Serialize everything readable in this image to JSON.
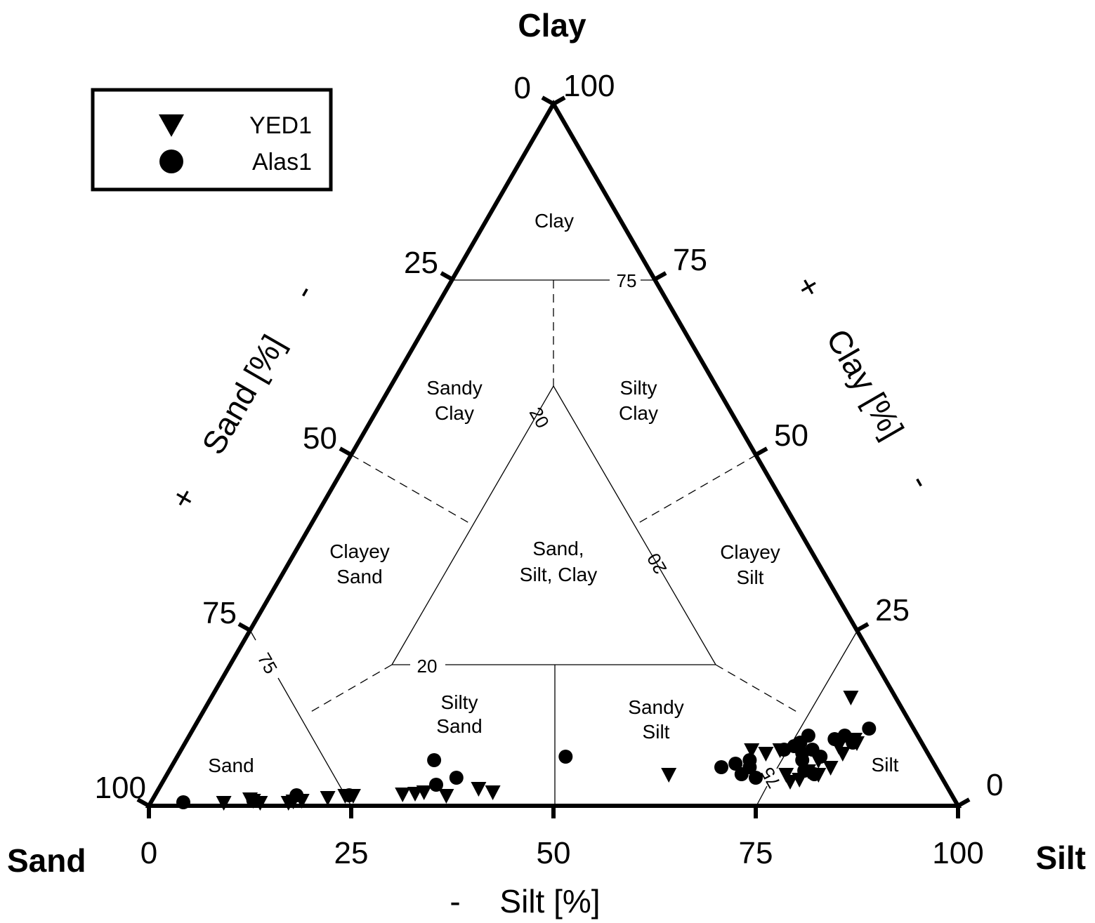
{
  "chart_data": {
    "type": "scatter",
    "subtype": "ternary",
    "corners": {
      "top": "Clay",
      "left": "Sand",
      "right": "Silt"
    },
    "axis_titles": {
      "left": {
        "plus": "+",
        "label": "Sand [%]",
        "minus": "-"
      },
      "right": {
        "plus": "+",
        "label": "Clay [%]",
        "minus": "-"
      },
      "bottom": {
        "minus": "-",
        "label": "Silt [%]"
      }
    },
    "ticks": {
      "bottom": [
        "0",
        "25",
        "50",
        "75",
        "100"
      ],
      "left": [
        "0",
        "25",
        "50",
        "75",
        "100"
      ],
      "right": [
        "100",
        "75",
        "50",
        "25",
        "0"
      ]
    },
    "boundary_labels": {
      "clay_75": "75",
      "clay_20": "20",
      "left_20": "20",
      "right_20": "20",
      "sand_75": "75",
      "silt_75": "75"
    },
    "regions": [
      {
        "id": "clay",
        "lines": [
          "Clay"
        ]
      },
      {
        "id": "sandy-clay",
        "lines": [
          "Sandy",
          "Clay"
        ]
      },
      {
        "id": "silty-clay",
        "lines": [
          "Silty",
          "Clay"
        ]
      },
      {
        "id": "clayey-sand",
        "lines": [
          "Clayey",
          "Sand"
        ]
      },
      {
        "id": "sand-silt-clay",
        "lines": [
          "Sand,",
          "Silt, Clay"
        ]
      },
      {
        "id": "clayey-silt",
        "lines": [
          "Clayey",
          "Silt"
        ]
      },
      {
        "id": "silty-sand",
        "lines": [
          "Silty",
          "Sand"
        ]
      },
      {
        "id": "sandy-silt",
        "lines": [
          "Sandy",
          "Silt"
        ]
      },
      {
        "id": "sand",
        "lines": [
          "Sand"
        ]
      },
      {
        "id": "silt",
        "lines": [
          "Silt"
        ]
      }
    ],
    "legend": {
      "position": "top-left"
    },
    "series": [
      {
        "name": "YED1",
        "marker": "triangle-down",
        "points": [
          {
            "silt": 9.0,
            "clay": 0.5
          },
          {
            "silt": 12.0,
            "clay": 1.0
          },
          {
            "silt": 12.5,
            "clay": 0.8
          },
          {
            "silt": 13.5,
            "clay": 0.5
          },
          {
            "silt": 17.0,
            "clay": 0.5
          },
          {
            "silt": 17.5,
            "clay": 0.7
          },
          {
            "silt": 18.5,
            "clay": 0.8
          },
          {
            "silt": 21.5,
            "clay": 1.2
          },
          {
            "silt": 23.5,
            "clay": 1.5
          },
          {
            "silt": 24.5,
            "clay": 1.5
          },
          {
            "silt": 30.5,
            "clay": 1.7
          },
          {
            "silt": 32.0,
            "clay": 1.8
          },
          {
            "silt": 33.0,
            "clay": 2.0
          },
          {
            "silt": 36.0,
            "clay": 1.5
          },
          {
            "silt": 39.5,
            "clay": 2.5
          },
          {
            "silt": 41.5,
            "clay": 2.0
          },
          {
            "silt": 62.0,
            "clay": 4.5
          },
          {
            "silt": 70.5,
            "clay": 8.0
          },
          {
            "silt": 72.5,
            "clay": 7.5
          },
          {
            "silt": 74.0,
            "clay": 8.0
          },
          {
            "silt": 76.5,
            "clay": 4.5
          },
          {
            "silt": 77.5,
            "clay": 3.5
          },
          {
            "silt": 78.5,
            "clay": 3.8
          },
          {
            "silt": 79.0,
            "clay": 5.0
          },
          {
            "silt": 79.5,
            "clay": 6.5
          },
          {
            "silt": 80.5,
            "clay": 4.5
          },
          {
            "silt": 81.0,
            "clay": 8.5
          },
          {
            "silt": 82.0,
            "clay": 7.5
          },
          {
            "silt": 82.5,
            "clay": 9.5
          },
          {
            "silt": 83.0,
            "clay": 9.0
          },
          {
            "silt": 81.5,
            "clay": 5.5
          },
          {
            "silt": 79.0,
            "clay": 15.5
          }
        ]
      },
      {
        "name": "Alas1",
        "marker": "circle",
        "points": [
          {
            "silt": 4.0,
            "clay": 0.5
          },
          {
            "silt": 12.5,
            "clay": 0.8
          },
          {
            "silt": 17.5,
            "clay": 1.5
          },
          {
            "silt": 24.0,
            "clay": 1.5
          },
          {
            "silt": 32.0,
            "clay": 6.5
          },
          {
            "silt": 34.0,
            "clay": 3.0
          },
          {
            "silt": 36.0,
            "clay": 4.0
          },
          {
            "silt": 48.0,
            "clay": 7.0
          },
          {
            "silt": 68.0,
            "clay": 5.5
          },
          {
            "silt": 69.5,
            "clay": 6.0
          },
          {
            "silt": 71.0,
            "clay": 6.5
          },
          {
            "silt": 71.5,
            "clay": 5.5
          },
          {
            "silt": 71.0,
            "clay": 4.5
          },
          {
            "silt": 74.5,
            "clay": 8.0
          },
          {
            "silt": 75.5,
            "clay": 8.5
          },
          {
            "silt": 76.0,
            "clay": 9.0
          },
          {
            "silt": 77.0,
            "clay": 7.5
          },
          {
            "silt": 78.0,
            "clay": 8.0
          },
          {
            "silt": 77.5,
            "clay": 6.5
          },
          {
            "silt": 79.5,
            "clay": 7.0
          },
          {
            "silt": 80.0,
            "clay": 9.5
          },
          {
            "silt": 81.0,
            "clay": 10.0
          },
          {
            "silt": 82.5,
            "clay": 9.0
          },
          {
            "silt": 76.5,
            "clay": 10.0
          },
          {
            "silt": 78.5,
            "clay": 5.0
          },
          {
            "silt": 80.0,
            "clay": 4.5
          },
          {
            "silt": 73.0,
            "clay": 4.0
          },
          {
            "silt": 83.5,
            "clay": 11.0
          }
        ]
      }
    ]
  }
}
